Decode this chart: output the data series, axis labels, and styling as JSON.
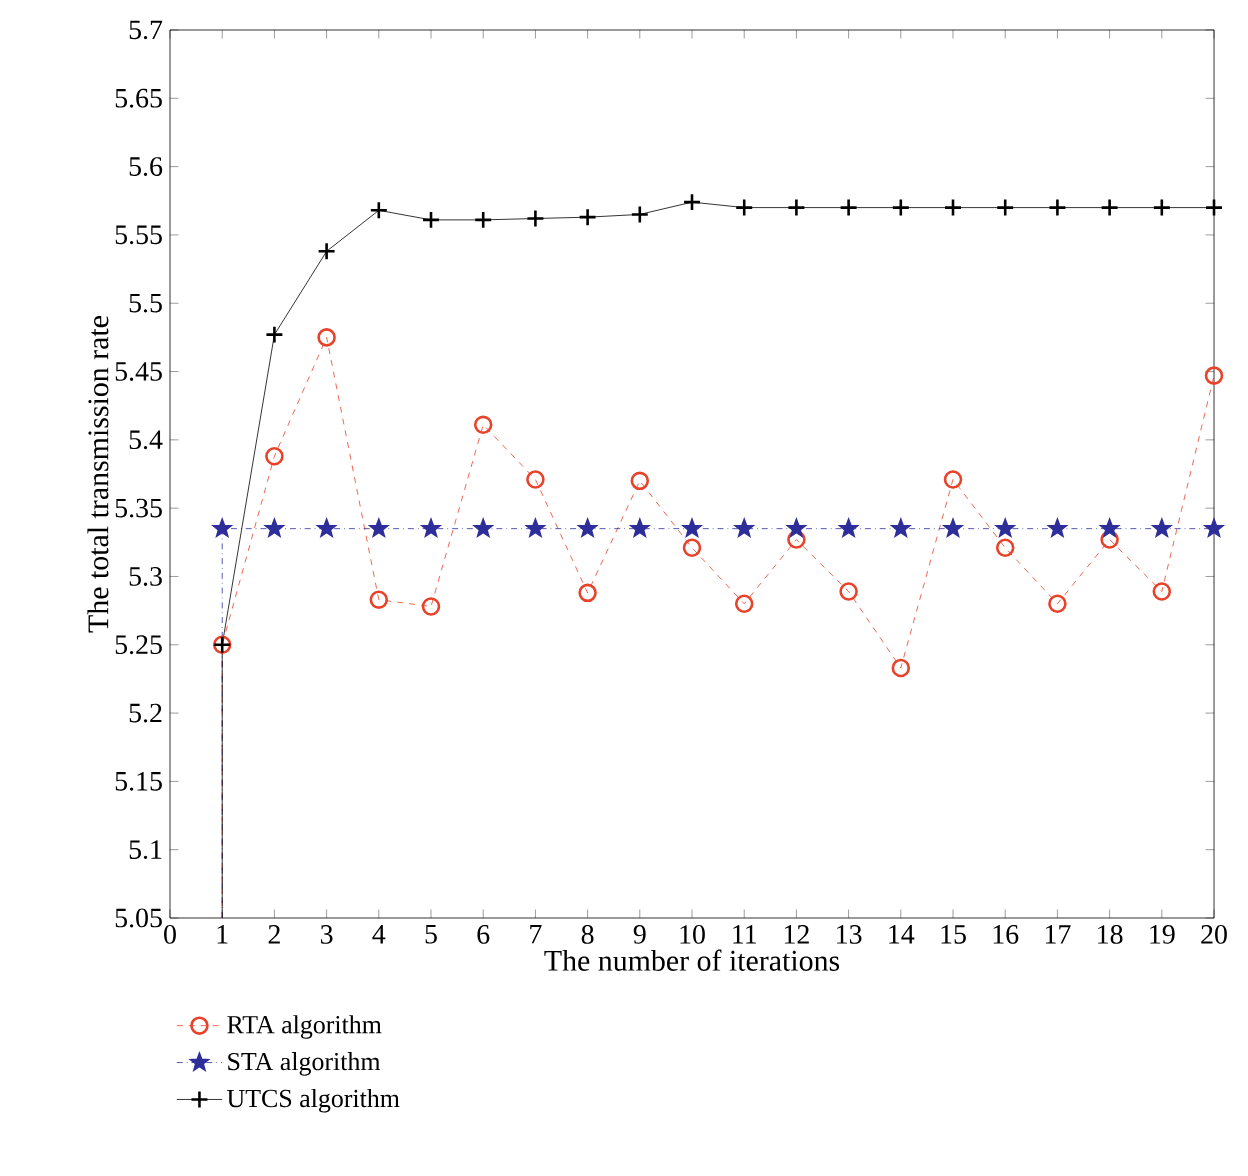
{
  "chart_data": {
    "type": "line",
    "xlabel": "The number of iterations",
    "ylabel": "The total transmission rate",
    "xlim": [
      0,
      20
    ],
    "ylim": [
      5.05,
      5.7
    ],
    "xticks": [
      0,
      1,
      2,
      3,
      4,
      5,
      6,
      7,
      8,
      9,
      10,
      11,
      12,
      13,
      14,
      15,
      16,
      17,
      18,
      19,
      20
    ],
    "yticks": [
      5.05,
      5.1,
      5.15,
      5.2,
      5.25,
      5.3,
      5.35,
      5.4,
      5.45,
      5.5,
      5.55,
      5.6,
      5.65,
      5.7
    ],
    "grid": false,
    "legend": "bottom left",
    "series": [
      {
        "name": "RTA algorithm",
        "color": "#e8432a",
        "marker": "circle",
        "line_style": "dashed",
        "x": [
          1,
          1,
          2,
          3,
          4,
          5,
          6,
          7,
          8,
          9,
          10,
          11,
          12,
          13,
          14,
          15,
          16,
          17,
          18,
          19,
          20
        ],
        "values": [
          5.05,
          5.25,
          5.388,
          5.475,
          5.283,
          5.278,
          5.411,
          5.371,
          5.288,
          5.37,
          5.321,
          5.28,
          5.327,
          5.289,
          5.233,
          5.371,
          5.321,
          5.28,
          5.327,
          5.289,
          5.447
        ]
      },
      {
        "name": "STA algorithm",
        "color": "#2e2e9a",
        "marker": "star",
        "line_style": "dashdot",
        "x": [
          1,
          1,
          2,
          3,
          4,
          5,
          6,
          7,
          8,
          9,
          10,
          11,
          12,
          13,
          14,
          15,
          16,
          17,
          18,
          19,
          20
        ],
        "values": [
          5.05,
          5.335,
          5.335,
          5.335,
          5.335,
          5.335,
          5.335,
          5.335,
          5.335,
          5.335,
          5.335,
          5.335,
          5.335,
          5.335,
          5.335,
          5.335,
          5.335,
          5.335,
          5.335,
          5.335,
          5.335
        ]
      },
      {
        "name": "UTCS algorithm",
        "color": "#000000",
        "marker": "cross",
        "line_style": "solid",
        "x": [
          1,
          1,
          2,
          3,
          4,
          5,
          6,
          7,
          8,
          9,
          10,
          11,
          12,
          13,
          14,
          15,
          16,
          17,
          18,
          19,
          20
        ],
        "values": [
          5.05,
          5.25,
          5.477,
          5.538,
          5.568,
          5.561,
          5.561,
          5.562,
          5.563,
          5.565,
          5.574,
          5.57,
          5.57,
          5.57,
          5.57,
          5.57,
          5.57,
          5.57,
          5.57,
          5.57,
          5.57
        ]
      }
    ]
  }
}
